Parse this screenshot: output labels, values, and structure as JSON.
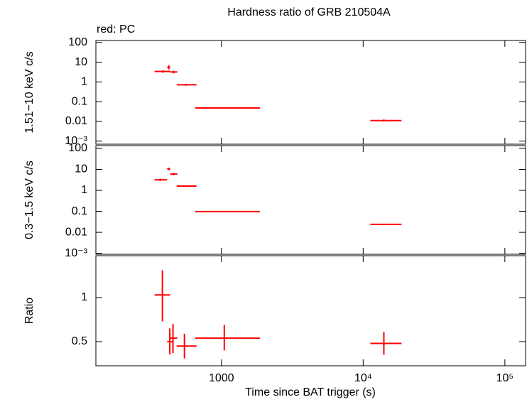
{
  "chart_data": [
    {
      "type": "scatter",
      "title": "Hardness ratio of GRB 210504A",
      "annotation": "red: PC",
      "ylabel": "1.51−10 keV c/s",
      "xlog": true,
      "ylog": true,
      "color": "#ff0000",
      "xlim": [
        130,
        140000
      ],
      "xticks": [
        1000,
        {
          "value": 10000,
          "label": "10⁴"
        },
        {
          "value": 100000,
          "label": "10⁵"
        }
      ],
      "ylim": [
        0.0007,
        126
      ],
      "yticks": [
        100,
        10,
        1,
        0.1,
        0.01,
        {
          "value": 0.001,
          "label": "10⁻³"
        }
      ],
      "x": [
        387,
        425,
        460,
        561,
        1047,
        14000
      ],
      "xmin": [
        337,
        414,
        435,
        483,
        652,
        11240
      ],
      "xmax": [
        435,
        435,
        488,
        667,
        1866,
        18660
      ],
      "values": [
        3.4,
        5.6,
        3.2,
        0.72,
        0.048,
        0.011
      ],
      "ymin": [
        2.9,
        4.3,
        2.7,
        0.64,
        0.044,
        0.0097
      ],
      "ymax": [
        3.9,
        7.0,
        3.7,
        0.8,
        0.052,
        0.0125
      ]
    },
    {
      "type": "scatter",
      "ylabel": "0.3−1.5 keV c/s",
      "xlog": true,
      "ylog": true,
      "color": "#ff0000",
      "xlim": [
        130,
        140000
      ],
      "xticks": [
        1000,
        {
          "value": 10000,
          "label": "10⁴"
        },
        {
          "value": 100000,
          "label": "10⁵"
        }
      ],
      "ylim": [
        0.0009,
        136
      ],
      "yticks": [
        100,
        10,
        1,
        0.1,
        0.01,
        {
          "value": 0.001,
          "label": "10⁻³"
        }
      ],
      "x": [
        370,
        425,
        460,
        561,
        1047,
        14000
      ],
      "xmin": [
        337,
        414,
        435,
        483,
        652,
        11240
      ],
      "xmax": [
        414,
        435,
        488,
        667,
        1866,
        18660
      ],
      "values": [
        3.2,
        10.5,
        6.0,
        1.6,
        0.098,
        0.024
      ],
      "ymin": [
        2.8,
        9.0,
        5.2,
        1.45,
        0.092,
        0.022
      ],
      "ymax": [
        3.6,
        12.0,
        6.8,
        1.75,
        0.104,
        0.026
      ]
    },
    {
      "type": "scatter",
      "ylabel": "Ratio",
      "xlabel": "Time since BAT trigger (s)",
      "xlog": true,
      "ylog": false,
      "color": "#ff0000",
      "xlim": [
        130,
        140000
      ],
      "xticks": [
        1000,
        {
          "value": 10000,
          "label": "10⁴"
        },
        {
          "value": 100000,
          "label": "10⁵"
        }
      ],
      "ylim": [
        0.226,
        1.476
      ],
      "yticks": [
        0.5,
        1
      ],
      "x": [
        383,
        432,
        455,
        548,
        1047,
        14000
      ],
      "xmin": [
        337,
        414,
        435,
        483,
        652,
        11240
      ],
      "xmax": [
        435,
        455,
        488,
        667,
        1866,
        18660
      ],
      "values": [
        1.03,
        0.5,
        0.54,
        0.45,
        0.54,
        0.48
      ],
      "ymin": [
        0.73,
        0.355,
        0.37,
        0.31,
        0.4,
        0.35
      ],
      "ymax": [
        1.31,
        0.65,
        0.7,
        0.59,
        0.69,
        0.61
      ]
    }
  ]
}
